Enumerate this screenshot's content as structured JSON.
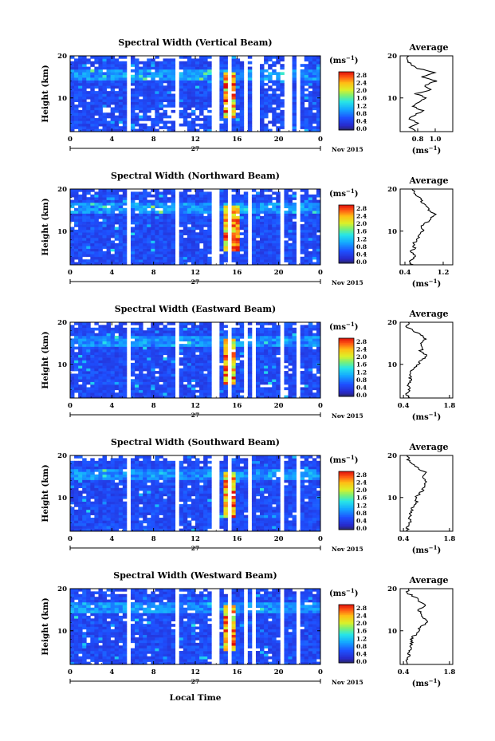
{
  "figure": {
    "xlabel": "Local Time",
    "date_label": "27",
    "date_suffix": "Nov 2015",
    "ylabel": "Height (km)",
    "colorbar_unit": "(ms",
    "colorbar_unit_exp": "−1",
    "colorbar_ticks": [
      "2.8",
      "2.4",
      "2.0",
      "1.6",
      "1.2",
      "0.8",
      "0.4",
      "0.0"
    ],
    "average_title": "Average",
    "average_unit": "(ms",
    "average_unit_exp": "−1"
  },
  "chart_data": [
    {
      "type": "heatmap",
      "title": "Spectral Width (Vertical Beam)",
      "x_ticks": [
        "0",
        "4",
        "8",
        "12",
        "16",
        "20",
        "0"
      ],
      "xlim": [
        0,
        24
      ],
      "y_ticks": [
        "20",
        "10"
      ],
      "ylim": [
        2,
        20
      ],
      "colorscale_range": [
        0.0,
        3.0
      ],
      "data_gaps_hours": [
        [
          5.4,
          5.9
        ],
        [
          9.9,
          10.3
        ],
        [
          13.6,
          14.4
        ],
        [
          15.0,
          15.5
        ],
        [
          16.8,
          17.2
        ],
        [
          17.6,
          18.0
        ],
        [
          19.6,
          19.8
        ],
        [
          20.6,
          21.2
        ],
        [
          21.6,
          22.0
        ]
      ],
      "high_values_region_hours": [
        14.7,
        16.0
      ],
      "profile": {
        "x_ticks": [
          "0.8",
          "1.0"
        ],
        "xlim": [
          0.6,
          1.2
        ],
        "height_km": [
          2,
          3,
          4,
          5,
          6,
          7,
          8,
          9,
          10,
          11,
          12,
          13,
          14,
          15,
          16,
          17,
          18,
          19,
          20
        ],
        "values": [
          0.78,
          0.72,
          0.8,
          0.7,
          0.78,
          0.85,
          0.74,
          0.82,
          0.9,
          0.78,
          0.95,
          0.88,
          1.02,
          0.85,
          1.0,
          0.8,
          0.72,
          0.68,
          0.7
        ]
      }
    },
    {
      "type": "heatmap",
      "title": "Spectral Width (Northward Beam)",
      "x_ticks": [
        "0",
        "4",
        "8",
        "12",
        "16",
        "20",
        "0"
      ],
      "xlim": [
        0,
        24
      ],
      "y_ticks": [
        "20",
        "10"
      ],
      "ylim": [
        2,
        20
      ],
      "colorscale_range": [
        0.0,
        3.0
      ],
      "data_gaps_hours": [
        [
          5.4,
          5.9
        ],
        [
          9.9,
          10.3
        ],
        [
          13.4,
          14.2
        ],
        [
          15.0,
          15.4
        ],
        [
          17.0,
          17.4
        ],
        [
          20.0,
          20.4
        ],
        [
          21.6,
          22.0
        ]
      ],
      "high_values_region_hours": [
        14.6,
        16.2
      ],
      "profile": {
        "x_ticks": [
          "0.4",
          "1.2"
        ],
        "xlim": [
          0.3,
          1.4
        ],
        "height_km": [
          2,
          3,
          4,
          5,
          6,
          7,
          8,
          9,
          10,
          11,
          12,
          13,
          14,
          15,
          16,
          17,
          18,
          19,
          20
        ],
        "values": [
          0.55,
          0.5,
          0.62,
          0.52,
          0.6,
          0.58,
          0.66,
          0.7,
          0.78,
          0.72,
          0.85,
          0.95,
          1.05,
          0.9,
          0.85,
          0.75,
          0.7,
          0.6,
          0.55
        ]
      }
    },
    {
      "type": "heatmap",
      "title": "Spectral Width (Eastward Beam)",
      "x_ticks": [
        "0",
        "4",
        "8",
        "12",
        "16",
        "20",
        "0"
      ],
      "xlim": [
        0,
        24
      ],
      "y_ticks": [
        "20",
        "10"
      ],
      "ylim": [
        2,
        20
      ],
      "colorscale_range": [
        0.0,
        3.0
      ],
      "data_gaps_hours": [
        [
          5.4,
          5.9
        ],
        [
          9.9,
          10.3
        ],
        [
          13.6,
          14.4
        ],
        [
          15.0,
          15.4
        ],
        [
          16.6,
          17.0
        ],
        [
          17.5,
          17.9
        ],
        [
          20.2,
          20.6
        ],
        [
          21.6,
          22.0
        ]
      ],
      "high_values_region_hours": [
        14.6,
        16.0
      ],
      "profile": {
        "x_ticks": [
          "0.4",
          "1.8"
        ],
        "xlim": [
          0.3,
          1.9
        ],
        "height_km": [
          2,
          3,
          4,
          5,
          6,
          7,
          8,
          9,
          10,
          11,
          12,
          13,
          14,
          15,
          16,
          17,
          18,
          19,
          20
        ],
        "values": [
          0.55,
          0.5,
          0.58,
          0.55,
          0.6,
          0.62,
          0.6,
          0.72,
          0.85,
          0.95,
          1.15,
          0.9,
          1.0,
          0.9,
          1.1,
          0.95,
          0.7,
          0.5,
          0.55
        ]
      }
    },
    {
      "type": "heatmap",
      "title": "Spectral Width (Southward Beam)",
      "x_ticks": [
        "0",
        "4",
        "8",
        "12",
        "16",
        "20",
        "0"
      ],
      "xlim": [
        0,
        24
      ],
      "y_ticks": [
        "20",
        "10"
      ],
      "ylim": [
        2,
        20
      ],
      "colorscale_range": [
        0.0,
        3.0
      ],
      "data_gaps_hours": [
        [
          5.4,
          5.9
        ],
        [
          9.9,
          10.3
        ],
        [
          13.6,
          14.3
        ],
        [
          15.0,
          15.4
        ],
        [
          17.0,
          17.4
        ],
        [
          20.3,
          20.6
        ],
        [
          21.6,
          22.0
        ]
      ],
      "high_values_region_hours": [
        14.6,
        16.0
      ],
      "profile": {
        "x_ticks": [
          "0.4",
          "1.8"
        ],
        "xlim": [
          0.3,
          1.9
        ],
        "height_km": [
          2,
          3,
          4,
          5,
          6,
          7,
          8,
          9,
          10,
          11,
          12,
          13,
          14,
          15,
          16,
          17,
          18,
          19,
          20
        ],
        "values": [
          0.55,
          0.52,
          0.6,
          0.58,
          0.62,
          0.66,
          0.7,
          0.8,
          0.78,
          0.9,
          1.0,
          1.05,
          1.1,
          0.95,
          1.05,
          0.85,
          0.7,
          0.55,
          0.5
        ]
      }
    },
    {
      "type": "heatmap",
      "title": "Spectral Width (Westward Beam)",
      "x_ticks": [
        "0",
        "4",
        "8",
        "12",
        "16",
        "20",
        "0"
      ],
      "xlim": [
        0,
        24
      ],
      "y_ticks": [
        "20",
        "10"
      ],
      "ylim": [
        2,
        20
      ],
      "colorscale_range": [
        0.0,
        3.0
      ],
      "data_gaps_hours": [
        [
          5.4,
          5.9
        ],
        [
          9.9,
          10.3
        ],
        [
          13.4,
          14.2
        ],
        [
          15.0,
          15.4
        ],
        [
          16.6,
          17.0
        ],
        [
          17.5,
          17.9
        ],
        [
          20.3,
          20.6
        ],
        [
          21.6,
          22.0
        ]
      ],
      "high_values_region_hours": [
        14.6,
        16.0
      ],
      "profile": {
        "x_ticks": [
          "0.4",
          "1.8"
        ],
        "xlim": [
          0.3,
          1.9
        ],
        "height_km": [
          2,
          3,
          4,
          5,
          6,
          7,
          8,
          9,
          10,
          11,
          12,
          13,
          14,
          15,
          16,
          17,
          18,
          19,
          20
        ],
        "values": [
          0.55,
          0.5,
          0.58,
          0.55,
          0.62,
          0.65,
          0.62,
          0.75,
          0.85,
          0.95,
          1.15,
          1.0,
          0.95,
          0.85,
          1.05,
          0.9,
          0.75,
          0.5,
          0.55
        ]
      }
    }
  ]
}
